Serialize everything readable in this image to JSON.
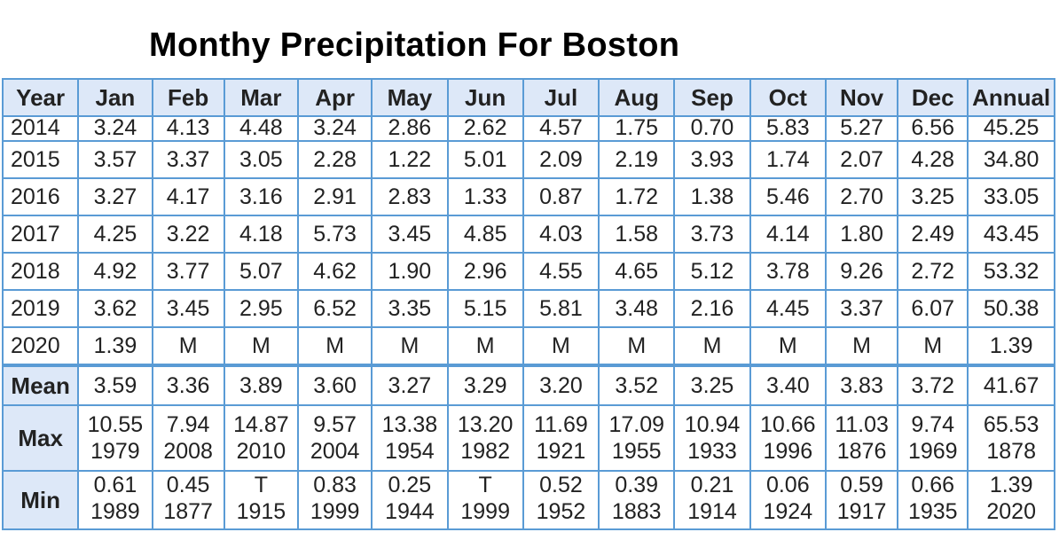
{
  "title": "Monthy Precipitation For Boston",
  "columns": [
    "Year",
    "Jan",
    "Feb",
    "Mar",
    "Apr",
    "May",
    "Jun",
    "Jul",
    "Aug",
    "Sep",
    "Oct",
    "Nov",
    "Dec",
    "Annual"
  ],
  "rows": [
    [
      "2014",
      "3.24",
      "4.13",
      "4.48",
      "3.24",
      "2.86",
      "2.62",
      "4.57",
      "1.75",
      "0.70",
      "5.83",
      "5.27",
      "6.56",
      "45.25"
    ],
    [
      "2015",
      "3.57",
      "3.37",
      "3.05",
      "2.28",
      "1.22",
      "5.01",
      "2.09",
      "2.19",
      "3.93",
      "1.74",
      "2.07",
      "4.28",
      "34.80"
    ],
    [
      "2016",
      "3.27",
      "4.17",
      "3.16",
      "2.91",
      "2.83",
      "1.33",
      "0.87",
      "1.72",
      "1.38",
      "5.46",
      "2.70",
      "3.25",
      "33.05"
    ],
    [
      "2017",
      "4.25",
      "3.22",
      "4.18",
      "5.73",
      "3.45",
      "4.85",
      "4.03",
      "1.58",
      "3.73",
      "4.14",
      "1.80",
      "2.49",
      "43.45"
    ],
    [
      "2018",
      "4.92",
      "3.77",
      "5.07",
      "4.62",
      "1.90",
      "2.96",
      "4.55",
      "4.65",
      "5.12",
      "3.78",
      "9.26",
      "2.72",
      "53.32"
    ],
    [
      "2019",
      "3.62",
      "3.45",
      "2.95",
      "6.52",
      "3.35",
      "5.15",
      "5.81",
      "3.48",
      "2.16",
      "4.45",
      "3.37",
      "6.07",
      "50.38"
    ],
    [
      "2020",
      "1.39",
      "M",
      "M",
      "M",
      "M",
      "M",
      "M",
      "M",
      "M",
      "M",
      "M",
      "M",
      "1.39"
    ]
  ],
  "mean": {
    "label": "Mean",
    "values": [
      "3.59",
      "3.36",
      "3.89",
      "3.60",
      "3.27",
      "3.29",
      "3.20",
      "3.52",
      "3.25",
      "3.40",
      "3.83",
      "3.72",
      "41.67"
    ]
  },
  "max": {
    "label": "Max",
    "values": [
      "10.55",
      "7.94",
      "14.87",
      "9.57",
      "13.38",
      "13.20",
      "11.69",
      "17.09",
      "10.94",
      "10.66",
      "11.03",
      "9.74",
      "65.53"
    ],
    "years": [
      "1979",
      "2008",
      "2010",
      "2004",
      "1954",
      "1982",
      "1921",
      "1955",
      "1933",
      "1996",
      "1876",
      "1969",
      "1878"
    ]
  },
  "min": {
    "label": "Min",
    "values": [
      "0.61",
      "0.45",
      "T",
      "0.83",
      "0.25",
      "T",
      "0.52",
      "0.39",
      "0.21",
      "0.06",
      "0.59",
      "0.66",
      "1.39"
    ],
    "years": [
      "1989",
      "1877",
      "1915",
      "1999",
      "1944",
      "1999",
      "1952",
      "1883",
      "1914",
      "1924",
      "1917",
      "1935",
      "2020"
    ]
  },
  "colors": {
    "header_bg": "#dde8f8",
    "grid_line": "#5a9bd5"
  }
}
